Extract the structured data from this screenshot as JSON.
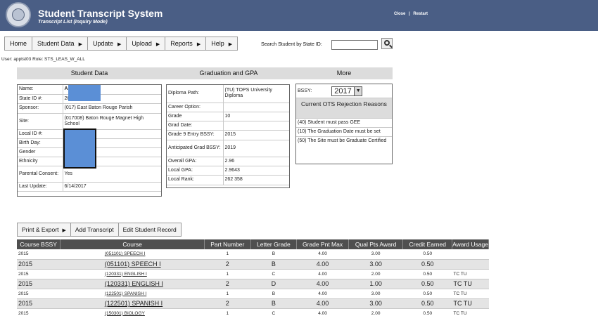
{
  "header": {
    "title": "Student Transcript System",
    "subtitle": "Transcript List (Inquiry Mode)",
    "close_label": "Close",
    "separator": "|",
    "restart_label": "Restart"
  },
  "menu": {
    "items": [
      {
        "label": "Home",
        "arrow": ""
      },
      {
        "label": "Student Data",
        "arrow": "▶"
      },
      {
        "label": "Update",
        "arrow": "▶"
      },
      {
        "label": "Upload",
        "arrow": "▶"
      },
      {
        "label": "Reports",
        "arrow": "▶"
      },
      {
        "label": "Help",
        "arrow": "▶"
      }
    ]
  },
  "search": {
    "label": "Search Student by State ID:",
    "value": ""
  },
  "user_line": "User: apptst03 Role: STS_LEAS_W_ALL",
  "sections": {
    "student_data": "Student Data",
    "graduation": "Graduation and GPA",
    "more": "More"
  },
  "student": {
    "rows": [
      {
        "label": "Name:",
        "value": "Al"
      },
      {
        "label": "State ID #:",
        "value": "26"
      },
      {
        "label": "Sponsor:",
        "value": "(017) East Baton Rouge Parish"
      },
      {
        "label": "Site:",
        "value": "(017008) Baton Rouge Magnet High School"
      },
      {
        "label": "Local ID #:",
        "value": ""
      },
      {
        "label": "Birth Day:",
        "value": ""
      },
      {
        "label": "Gender",
        "value": ""
      },
      {
        "label": "Ethnicity",
        "value": ""
      },
      {
        "label": "Parental Consent:",
        "value": "Yes"
      },
      {
        "label": "Last Update:",
        "value": "6/14/2017"
      }
    ]
  },
  "graduation": {
    "rows": [
      {
        "label": "Diploma Path:",
        "value": "(TU) TOPS University Diploma"
      },
      {
        "label": "Career Option:",
        "value": ""
      },
      {
        "label": "Grade",
        "value": "10"
      },
      {
        "label": "Grad Date:",
        "value": ""
      },
      {
        "label": "Grade 9 Entry BSSY:",
        "value": "2015"
      },
      {
        "label": "Anticipated Grad BSSY:",
        "value": "2019"
      },
      {
        "label": "Overall GPA:",
        "value": "2.96"
      },
      {
        "label": "Local GPA:",
        "value": "2.9643"
      },
      {
        "label": "Local Rank:",
        "value": "262 358"
      }
    ]
  },
  "more": {
    "bssy_label": "BSSY:",
    "bssy_value": "2017",
    "ots_title": "Current OTS Rejection Reasons",
    "reasons": [
      "(40) Student must pass GEE",
      "(10) The Graduation Date must be set",
      "(50) The Site must be Graduate Certified"
    ]
  },
  "actions": {
    "print_export": "Print & Export",
    "print_arrow": "▶",
    "add_transcript": "Add Transcript",
    "edit_record": "Edit Student Record"
  },
  "transcript": {
    "columns": [
      "Course BSSY",
      "Course",
      "Part Number",
      "Letter Grade",
      "Grade Pnt Max",
      "Qual Pts Award",
      "Credit Earned",
      "Award Usage"
    ],
    "rows": [
      {
        "style": "small",
        "bssy": "2015",
        "course": "(051101) SPEECH I",
        "part": "1",
        "grade": "B",
        "max": "4.00",
        "qual": "3.00",
        "credit": "0.50",
        "usage": ""
      },
      {
        "style": "big",
        "bssy": "2015",
        "course": "(051101) SPEECH I",
        "part": "2",
        "grade": "B",
        "max": "4.00",
        "qual": "3.00",
        "credit": "0.50",
        "usage": ""
      },
      {
        "style": "small",
        "bssy": "2015",
        "course": "(120331) ENGLISH I",
        "part": "1",
        "grade": "C",
        "max": "4.00",
        "qual": "2.00",
        "credit": "0.50",
        "usage": "TC TU"
      },
      {
        "style": "big",
        "bssy": "2015",
        "course": "(120331) ENGLISH I",
        "part": "2",
        "grade": "D",
        "max": "4.00",
        "qual": "1.00",
        "credit": "0.50",
        "usage": "TC TU"
      },
      {
        "style": "small",
        "bssy": "2015",
        "course": "(122501) SPANISH I",
        "part": "1",
        "grade": "B",
        "max": "4.00",
        "qual": "3.00",
        "credit": "0.50",
        "usage": "TC TU"
      },
      {
        "style": "big",
        "bssy": "2015",
        "course": "(122501) SPANISH I",
        "part": "2",
        "grade": "B",
        "max": "4.00",
        "qual": "3.00",
        "credit": "0.50",
        "usage": "TC TU"
      },
      {
        "style": "small",
        "bssy": "2015",
        "course": "(150301) BIOLOGY",
        "part": "1",
        "grade": "C",
        "max": "4.00",
        "qual": "2.00",
        "credit": "0.50",
        "usage": "TC TU"
      }
    ]
  }
}
